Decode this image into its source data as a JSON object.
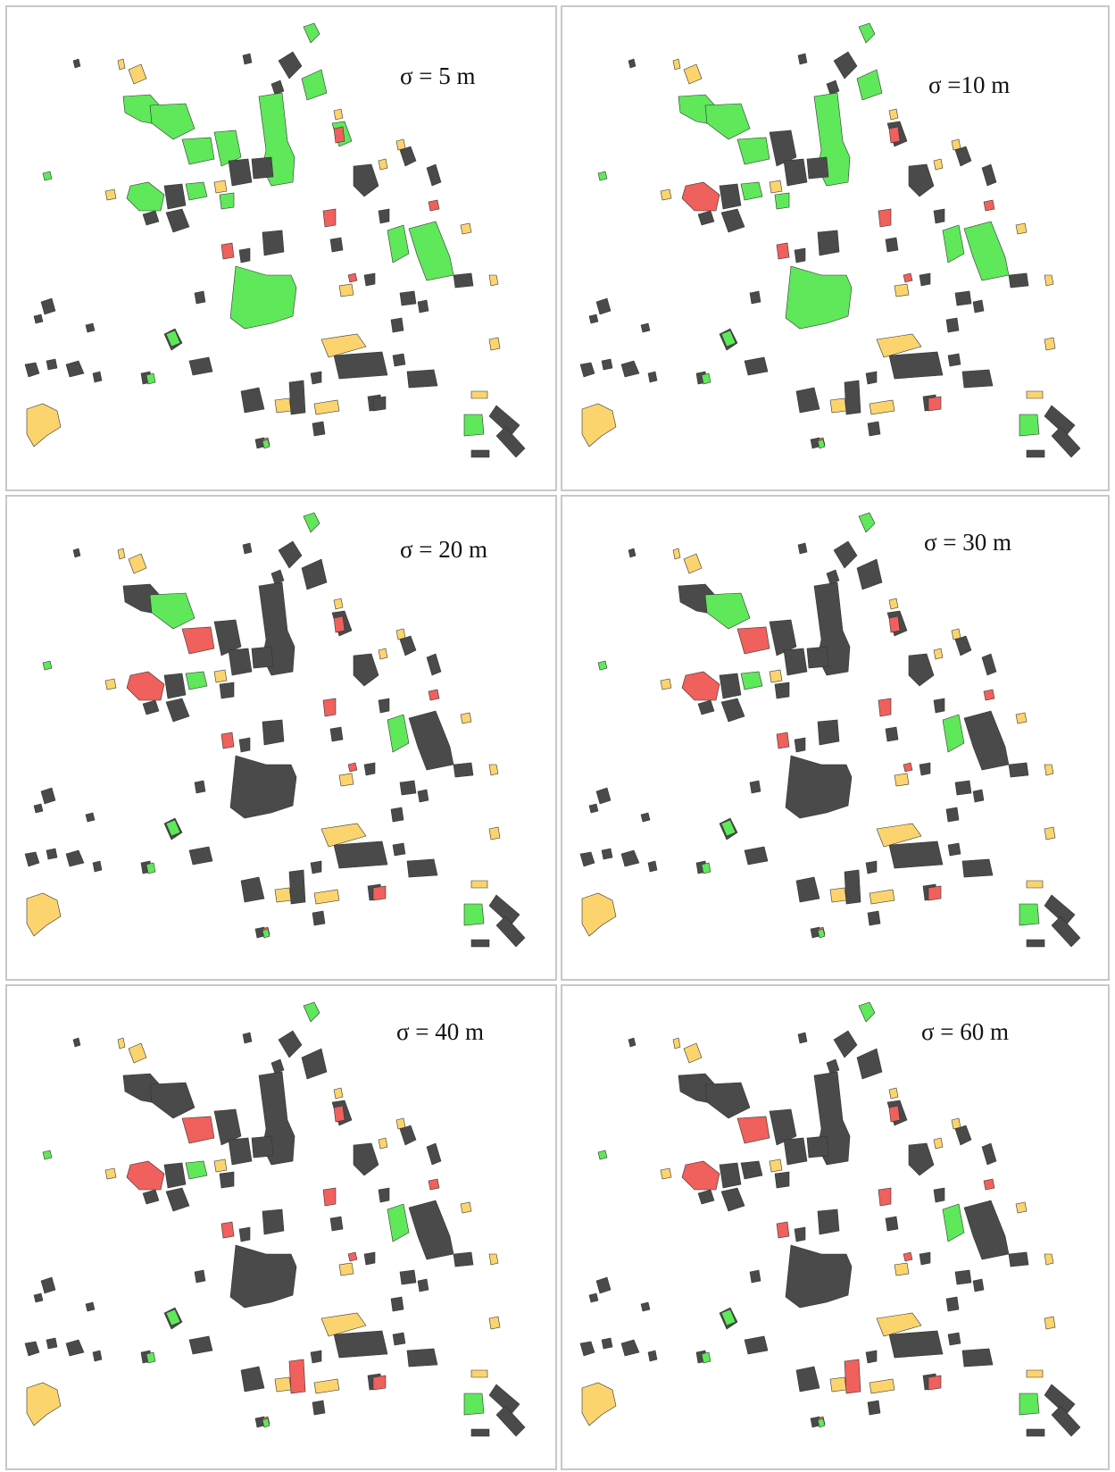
{
  "colors": {
    "green": "#5ee85a",
    "dark": "#4a4a4a",
    "red": "#f0605c",
    "yellow": "#fcd46e",
    "outline": "#333333"
  },
  "panels": [
    {
      "label": "σ = 5 m",
      "state": [
        "g",
        "g",
        "g",
        "g",
        "g",
        "d",
        "g",
        "g",
        "g",
        "g",
        "g",
        "g",
        "g",
        "g",
        "d",
        "r",
        "g",
        "y",
        "d",
        "r",
        "g",
        "d",
        "d",
        "r"
      ]
    },
    {
      "label": "σ =10 m",
      "state": [
        "g",
        "g",
        "g",
        "g",
        "d",
        "d",
        "r",
        "g",
        "g",
        "g",
        "g",
        "g",
        "g",
        "g",
        "d",
        "r",
        "d",
        "y",
        "d",
        "r",
        "g",
        "d",
        "r",
        "r"
      ]
    },
    {
      "label": "σ = 20 m",
      "state": [
        "g",
        "d",
        "g",
        "r",
        "d",
        "d",
        "r",
        "g",
        "d",
        "d",
        "d",
        "d",
        "g",
        "d",
        "d",
        "r",
        "d",
        "y",
        "d",
        "r",
        "g",
        "d",
        "r",
        "r"
      ]
    },
    {
      "label": "σ = 30 m",
      "state": [
        "g",
        "d",
        "g",
        "r",
        "d",
        "d",
        "r",
        "g",
        "d",
        "d",
        "d",
        "d",
        "g",
        "d",
        "d",
        "r",
        "d",
        "y",
        "d",
        "r",
        "g",
        "d",
        "r",
        "r"
      ]
    },
    {
      "label": "σ = 40 m",
      "state": [
        "g",
        "d",
        "d",
        "r",
        "d",
        "d",
        "r",
        "g",
        "d",
        "d",
        "d",
        "d",
        "g",
        "d",
        "d",
        "r",
        "d",
        "y",
        "r",
        "r",
        "g",
        "d",
        "r",
        "r"
      ]
    },
    {
      "label": "σ = 60 m",
      "state": [
        "g",
        "d",
        "d",
        "r",
        "d",
        "d",
        "r",
        "d",
        "d",
        "d",
        "d",
        "d",
        "g",
        "d",
        "d",
        "r",
        "d",
        "y",
        "r",
        "r",
        "g",
        "d",
        "r",
        "r"
      ]
    }
  ]
}
